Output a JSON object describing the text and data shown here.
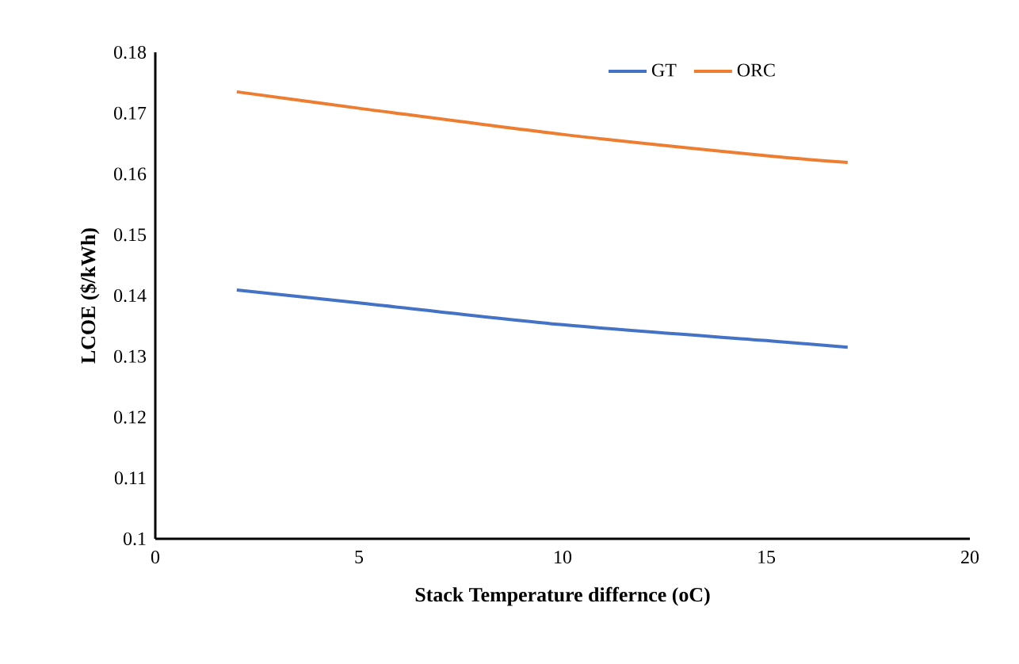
{
  "chart_data": {
    "type": "line",
    "xlabel": "Stack Temperature differnce (oC)",
    "ylabel": "LCOE ($/kWh)",
    "x": [
      2,
      5,
      10,
      15,
      17
    ],
    "series": [
      {
        "name": "GT",
        "color": "#4472c4",
        "values": [
          0.1409,
          0.1388,
          0.1352,
          0.1326,
          0.1315
        ]
      },
      {
        "name": "ORC",
        "color": "#ed7d31",
        "values": [
          0.1735,
          0.1708,
          0.1665,
          0.163,
          0.1619
        ]
      }
    ],
    "xlim": [
      0,
      20
    ],
    "ylim": [
      0.1,
      0.18
    ],
    "xticks": [
      0,
      5,
      10,
      15,
      20
    ],
    "yticks": [
      0.1,
      0.11,
      0.12,
      0.13,
      0.14,
      0.15,
      0.16,
      0.17,
      0.18
    ],
    "grid": false,
    "legend": "top",
    "marker": "none",
    "line_style": "solid"
  }
}
